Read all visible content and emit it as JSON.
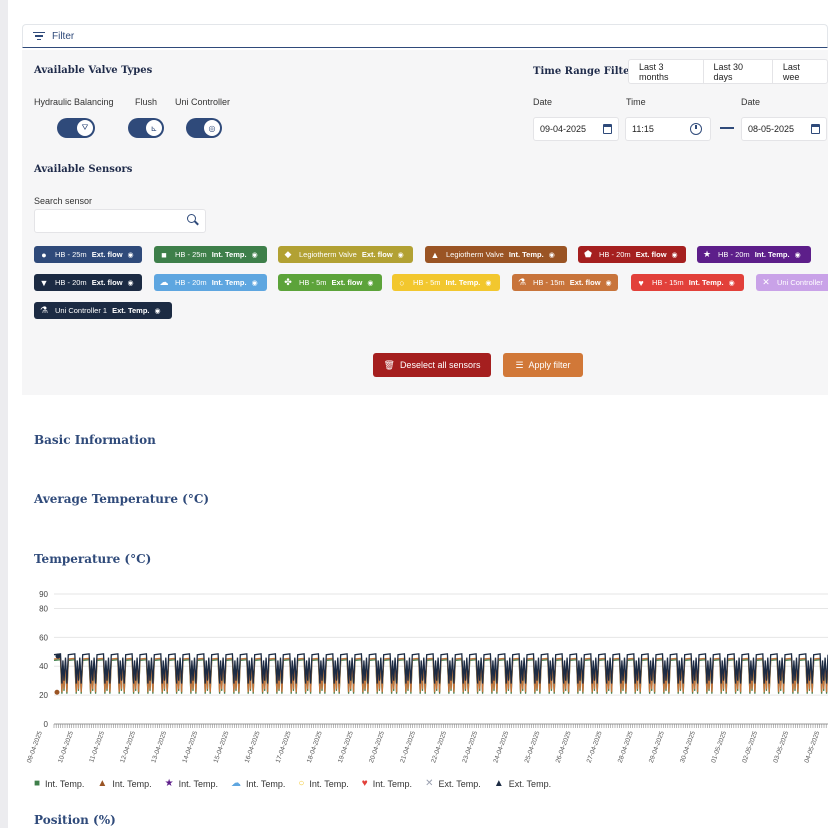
{
  "filter": {
    "label": "Filter"
  },
  "valve": {
    "heading": "Available Valve Types",
    "types": [
      {
        "label": "Hydraulic Balancing",
        "icon": "valve-icon"
      },
      {
        "label": "Flush",
        "icon": "flush-icon"
      },
      {
        "label": "Uni Controller",
        "icon": "controller-icon"
      }
    ]
  },
  "sensors": {
    "heading": "Available Sensors",
    "search_label": "Search sensor",
    "search_placeholder": "",
    "chips": [
      {
        "name": "HB - 25m",
        "type": "Ext. flow",
        "color": "#2f4a7a",
        "icon": "circle"
      },
      {
        "name": "HB - 25m",
        "type": "Int. Temp.",
        "color": "#3e7f4a",
        "icon": "square"
      },
      {
        "name": "Legiotherm Valve",
        "type": "Ext. flow",
        "color": "#b2a133",
        "icon": "diamond"
      },
      {
        "name": "Legiotherm Valve",
        "type": "Int. Temp.",
        "color": "#9a5424",
        "icon": "triangle"
      },
      {
        "name": "HB - 20m",
        "type": "Ext. flow",
        "color": "#a51f1f",
        "icon": "pentagon"
      },
      {
        "name": "HB - 20m",
        "type": "Int. Temp.",
        "color": "#5d1e8a",
        "icon": "star"
      },
      {
        "name": "HB - 20m",
        "type": "Ext. flow",
        "color": "#1c2b43",
        "icon": "triangle-down"
      },
      {
        "name": "HB - 20m",
        "type": "Int. Temp.",
        "color": "#5ea6e0",
        "icon": "cloud"
      },
      {
        "name": "HB - 5m",
        "type": "Ext. flow",
        "color": "#5ca33a",
        "icon": "clover"
      },
      {
        "name": "HB - 5m",
        "type": "Int. Temp.",
        "color": "#f2c72e",
        "icon": "ring"
      },
      {
        "name": "HB - 15m",
        "type": "Ext. flow",
        "color": "#c8743b",
        "icon": "flask"
      },
      {
        "name": "HB - 15m",
        "type": "Int. Temp.",
        "color": "#e2403a",
        "icon": "heart"
      },
      {
        "name": "Uni Controller",
        "type": "",
        "color": "#c9a2e8",
        "icon": "x"
      },
      {
        "name": "Uni Controller 1",
        "type": "Ext. Temp.",
        "color": "#1c2b43",
        "icon": "flask"
      }
    ]
  },
  "buttons": {
    "deselect": "Deselect all sensors",
    "apply": "Apply filter"
  },
  "time_range": {
    "heading": "Time Range Filter",
    "options": [
      "Last 3 months",
      "Last 30 days",
      "Last wee"
    ],
    "date_label": "Date",
    "time_label": "Time",
    "start_date": "09-04-2025",
    "start_time": "11:15",
    "end_date": "08-05-2025"
  },
  "sections": {
    "basic": "Basic Information",
    "avg_temp": "Average Temperature (°C)",
    "temp": "Temperature (°C)",
    "position": "Position (%)"
  },
  "chart_data": {
    "type": "line",
    "title": "",
    "xlabel": "",
    "ylabel": "",
    "y_ticks": [
      0,
      20,
      40,
      60,
      80,
      90
    ],
    "ylim": [
      0,
      90
    ],
    "x_tick_labels": [
      "09-04-2025",
      "10-04-2025",
      "11-04-2025",
      "12-04-2025",
      "13-04-2025",
      "14-04-2025",
      "15-04-2025",
      "16-04-2025",
      "17-04-2025",
      "18-04-2025",
      "19-04-2025",
      "20-04-2025",
      "21-04-2025",
      "22-04-2025",
      "23-04-2025",
      "24-04-2025",
      "25-04-2025",
      "26-04-2025",
      "27-04-2025",
      "28-04-2025",
      "29-04-2025",
      "30-04-2025",
      "01-05-2025",
      "02-05-2025",
      "03-05-2025",
      "04-05-2025",
      "05-05-2025"
    ],
    "cycles_per_day": 2,
    "series": [
      {
        "name": "Ext. Temp.",
        "color": "#1c2b43",
        "high": 48,
        "low": 28
      },
      {
        "name": "Int. Temp.",
        "color": "#c8743b",
        "high": 45,
        "low": 22
      },
      {
        "name": "Int. Temp.",
        "color": "#3e7f4a",
        "high": 44,
        "low": 21
      }
    ],
    "grid": true
  },
  "legend": [
    {
      "label": "Int. Temp.",
      "symbol": "■",
      "color": "#3e7f4a"
    },
    {
      "label": "Int. Temp.",
      "symbol": "▲",
      "color": "#9a5424"
    },
    {
      "label": "Int. Temp.",
      "symbol": "★",
      "color": "#5d1e8a"
    },
    {
      "label": "Int. Temp.",
      "symbol": "☁",
      "color": "#5ea6e0"
    },
    {
      "label": "Int. Temp.",
      "symbol": "○",
      "color": "#f2c72e"
    },
    {
      "label": "Int. Temp.",
      "symbol": "♥",
      "color": "#e2403a"
    },
    {
      "label": "Ext. Temp.",
      "symbol": "✕",
      "color": "#9aa0b0"
    },
    {
      "label": "Ext. Temp.",
      "symbol": "▲",
      "color": "#1c2b43"
    }
  ]
}
